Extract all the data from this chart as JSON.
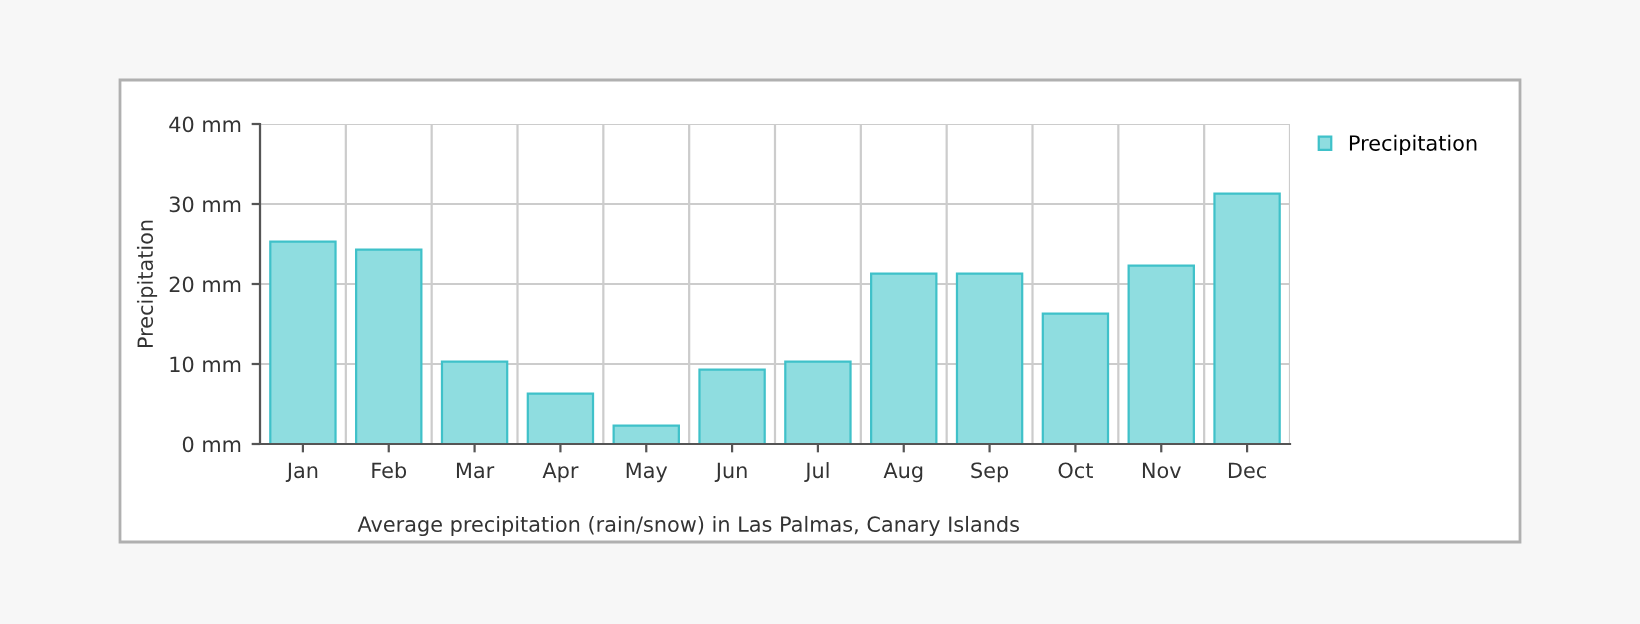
{
  "chart_data": {
    "type": "bar",
    "ylabel": "Precipitation",
    "categories": [
      "Jan",
      "Feb",
      "Mar",
      "Apr",
      "May",
      "Jun",
      "Jul",
      "Aug",
      "Sep",
      "Oct",
      "Nov",
      "Dec"
    ],
    "series": [
      {
        "name": "Precipitation",
        "color": "#8fdde0",
        "values": [
          25.3,
          24.3,
          10.3,
          6.3,
          2.3,
          9.3,
          10.3,
          21.3,
          21.3,
          16.3,
          22.3,
          31.3
        ]
      }
    ],
    "ylim": [
      0,
      40
    ],
    "yticks": [
      {
        "value": 0,
        "label": "0 mm"
      },
      {
        "value": 10,
        "label": "10 mm"
      },
      {
        "value": 20,
        "label": "20 mm"
      },
      {
        "value": 30,
        "label": "30 mm"
      },
      {
        "value": 40,
        "label": "40 mm"
      }
    ],
    "grid": true,
    "legend": "top right",
    "annotations": [
      "Average precipitation (rain/snow) in Las Palmas, Canary Islands"
    ]
  }
}
